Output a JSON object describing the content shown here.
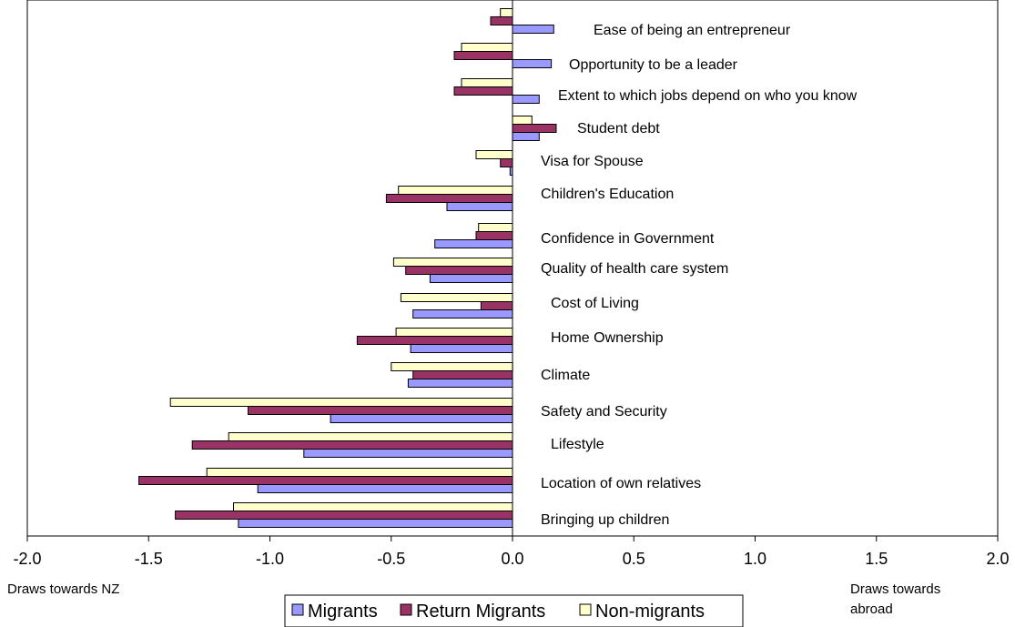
{
  "chart_data": {
    "type": "bar",
    "orientation": "horizontal",
    "categories": [
      "Ease of being an entrepreneur",
      "Opportunity to be a leader",
      "Extent to which jobs depend on who you know",
      "Student debt",
      "Visa for Spouse",
      "Children's Education",
      "Confidence in Government",
      "Quality of health care system",
      "Cost of Living",
      "Home Ownership",
      "Climate",
      "Safety and Security",
      "Lifestyle",
      "Location of own relatives",
      "Bringing up children"
    ],
    "series": [
      {
        "name": "Non-migrants",
        "color": "#FFFFCC",
        "values": [
          -0.05,
          -0.21,
          -0.21,
          0.08,
          -0.15,
          -0.47,
          -0.14,
          -0.49,
          -0.46,
          -0.48,
          -0.5,
          -1.41,
          -1.17,
          -1.26,
          -1.15
        ]
      },
      {
        "name": "Return Migrants",
        "color": "#993366",
        "values": [
          -0.09,
          -0.24,
          -0.24,
          0.18,
          -0.05,
          -0.52,
          -0.15,
          -0.44,
          -0.13,
          -0.64,
          -0.41,
          -1.09,
          -1.32,
          -1.54,
          -1.39
        ]
      },
      {
        "name": "Migrants",
        "color": "#9999FF",
        "values": [
          0.17,
          0.16,
          0.11,
          0.11,
          -0.01,
          -0.27,
          -0.32,
          -0.34,
          -0.41,
          -0.42,
          -0.43,
          -0.75,
          -0.86,
          -1.05,
          -1.13
        ]
      }
    ],
    "xlim": [
      -2.0,
      2.0
    ],
    "xticks": [
      "-2.0",
      "-1.5",
      "-1.0",
      "-0.5",
      "0.0",
      "0.5",
      "1.0",
      "1.5",
      "2.0"
    ],
    "xtick_values": [
      -2.0,
      -1.5,
      -1.0,
      -0.5,
      0.0,
      0.5,
      1.0,
      1.5,
      2.0
    ],
    "annotations": {
      "left": "Draws towards NZ",
      "right_line1": "Draws towards",
      "right_line2": "abroad"
    },
    "legend": {
      "position": "bottom",
      "order": [
        "Migrants",
        "Return Migrants",
        "Non-migrants"
      ]
    },
    "grid": false
  }
}
